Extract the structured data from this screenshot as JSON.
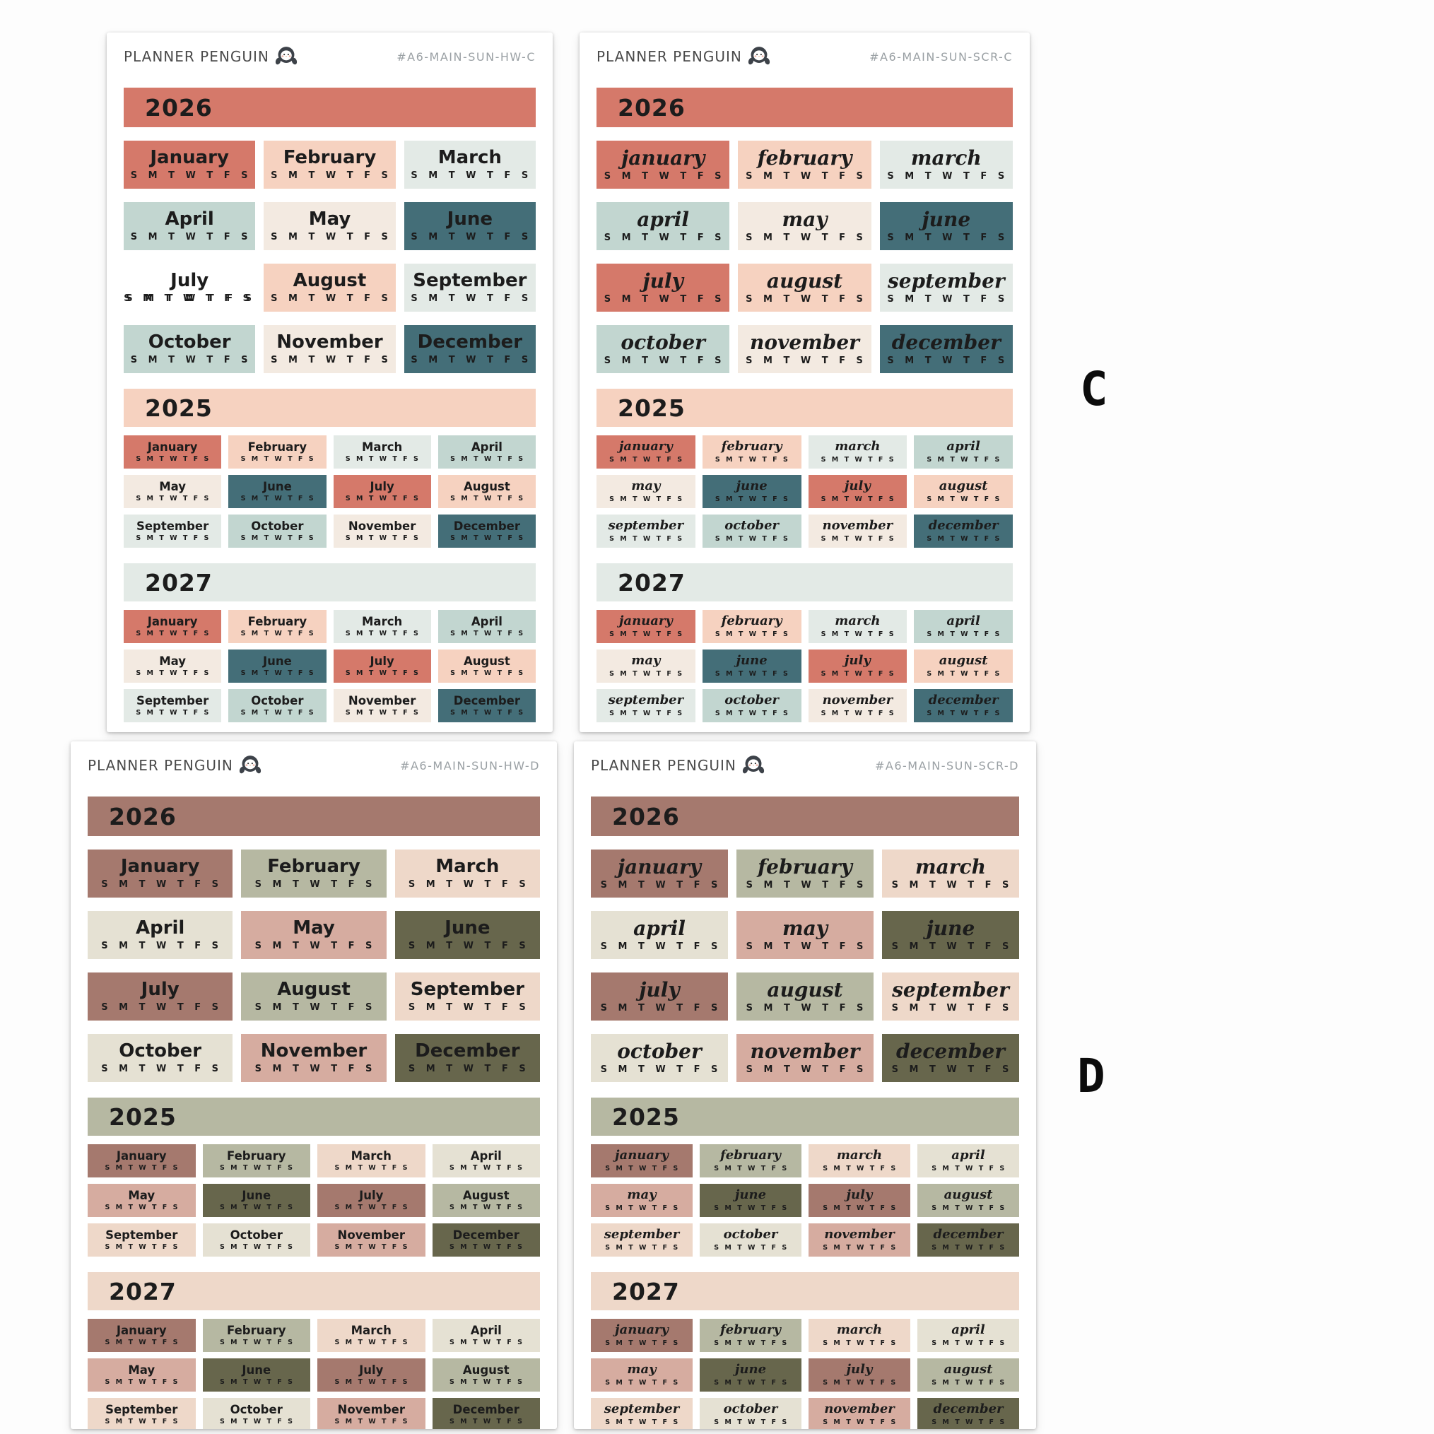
{
  "brand": {
    "name": "PLANNER PENGUIN"
  },
  "day_letters": "S M T W T F S",
  "side_labels": {
    "top": "C",
    "bottom": "D"
  },
  "years": {
    "main": "2026",
    "second": "2025",
    "third": "2027"
  },
  "months": {
    "print": [
      "January",
      "February",
      "March",
      "April",
      "May",
      "June",
      "July",
      "August",
      "September",
      "October",
      "November",
      "December"
    ],
    "script": [
      "january",
      "february",
      "march",
      "april",
      "may",
      "june",
      "july",
      "august",
      "september",
      "october",
      "november",
      "december"
    ]
  },
  "palettes": {
    "C": {
      "cycle": [
        "#d5796a",
        "#f6d2c0",
        "#e3eae6",
        "#c2d6d0",
        "#f3eae1",
        "#446e78"
      ],
      "banners": {
        "2026": "#d5796a",
        "2025": "#f6d2c0",
        "2027": "#e3eae6"
      }
    },
    "D": {
      "cycle": [
        "#a5796e",
        "#b6b8a2",
        "#eed8c9",
        "#e5e1d3",
        "#d6aca0",
        "#67664c"
      ],
      "banners": {
        "2026": "#a5796e",
        "2025": "#b6b8a2",
        "2027": "#eed8c9"
      }
    }
  },
  "sheets": [
    {
      "sku": "#A6-MAIN-SUN-HW-C",
      "style": "print",
      "palette": "C",
      "blank_july_2026": true
    },
    {
      "sku": "#A6-MAIN-SUN-SCR-C",
      "style": "script",
      "palette": "C",
      "blank_july_2026": false
    },
    {
      "sku": "#A6-MAIN-SUN-HW-D",
      "style": "print",
      "palette": "D",
      "blank_july_2026": false
    },
    {
      "sku": "#A6-MAIN-SUN-SCR-D",
      "style": "script",
      "palette": "D",
      "blank_july_2026": false
    }
  ]
}
